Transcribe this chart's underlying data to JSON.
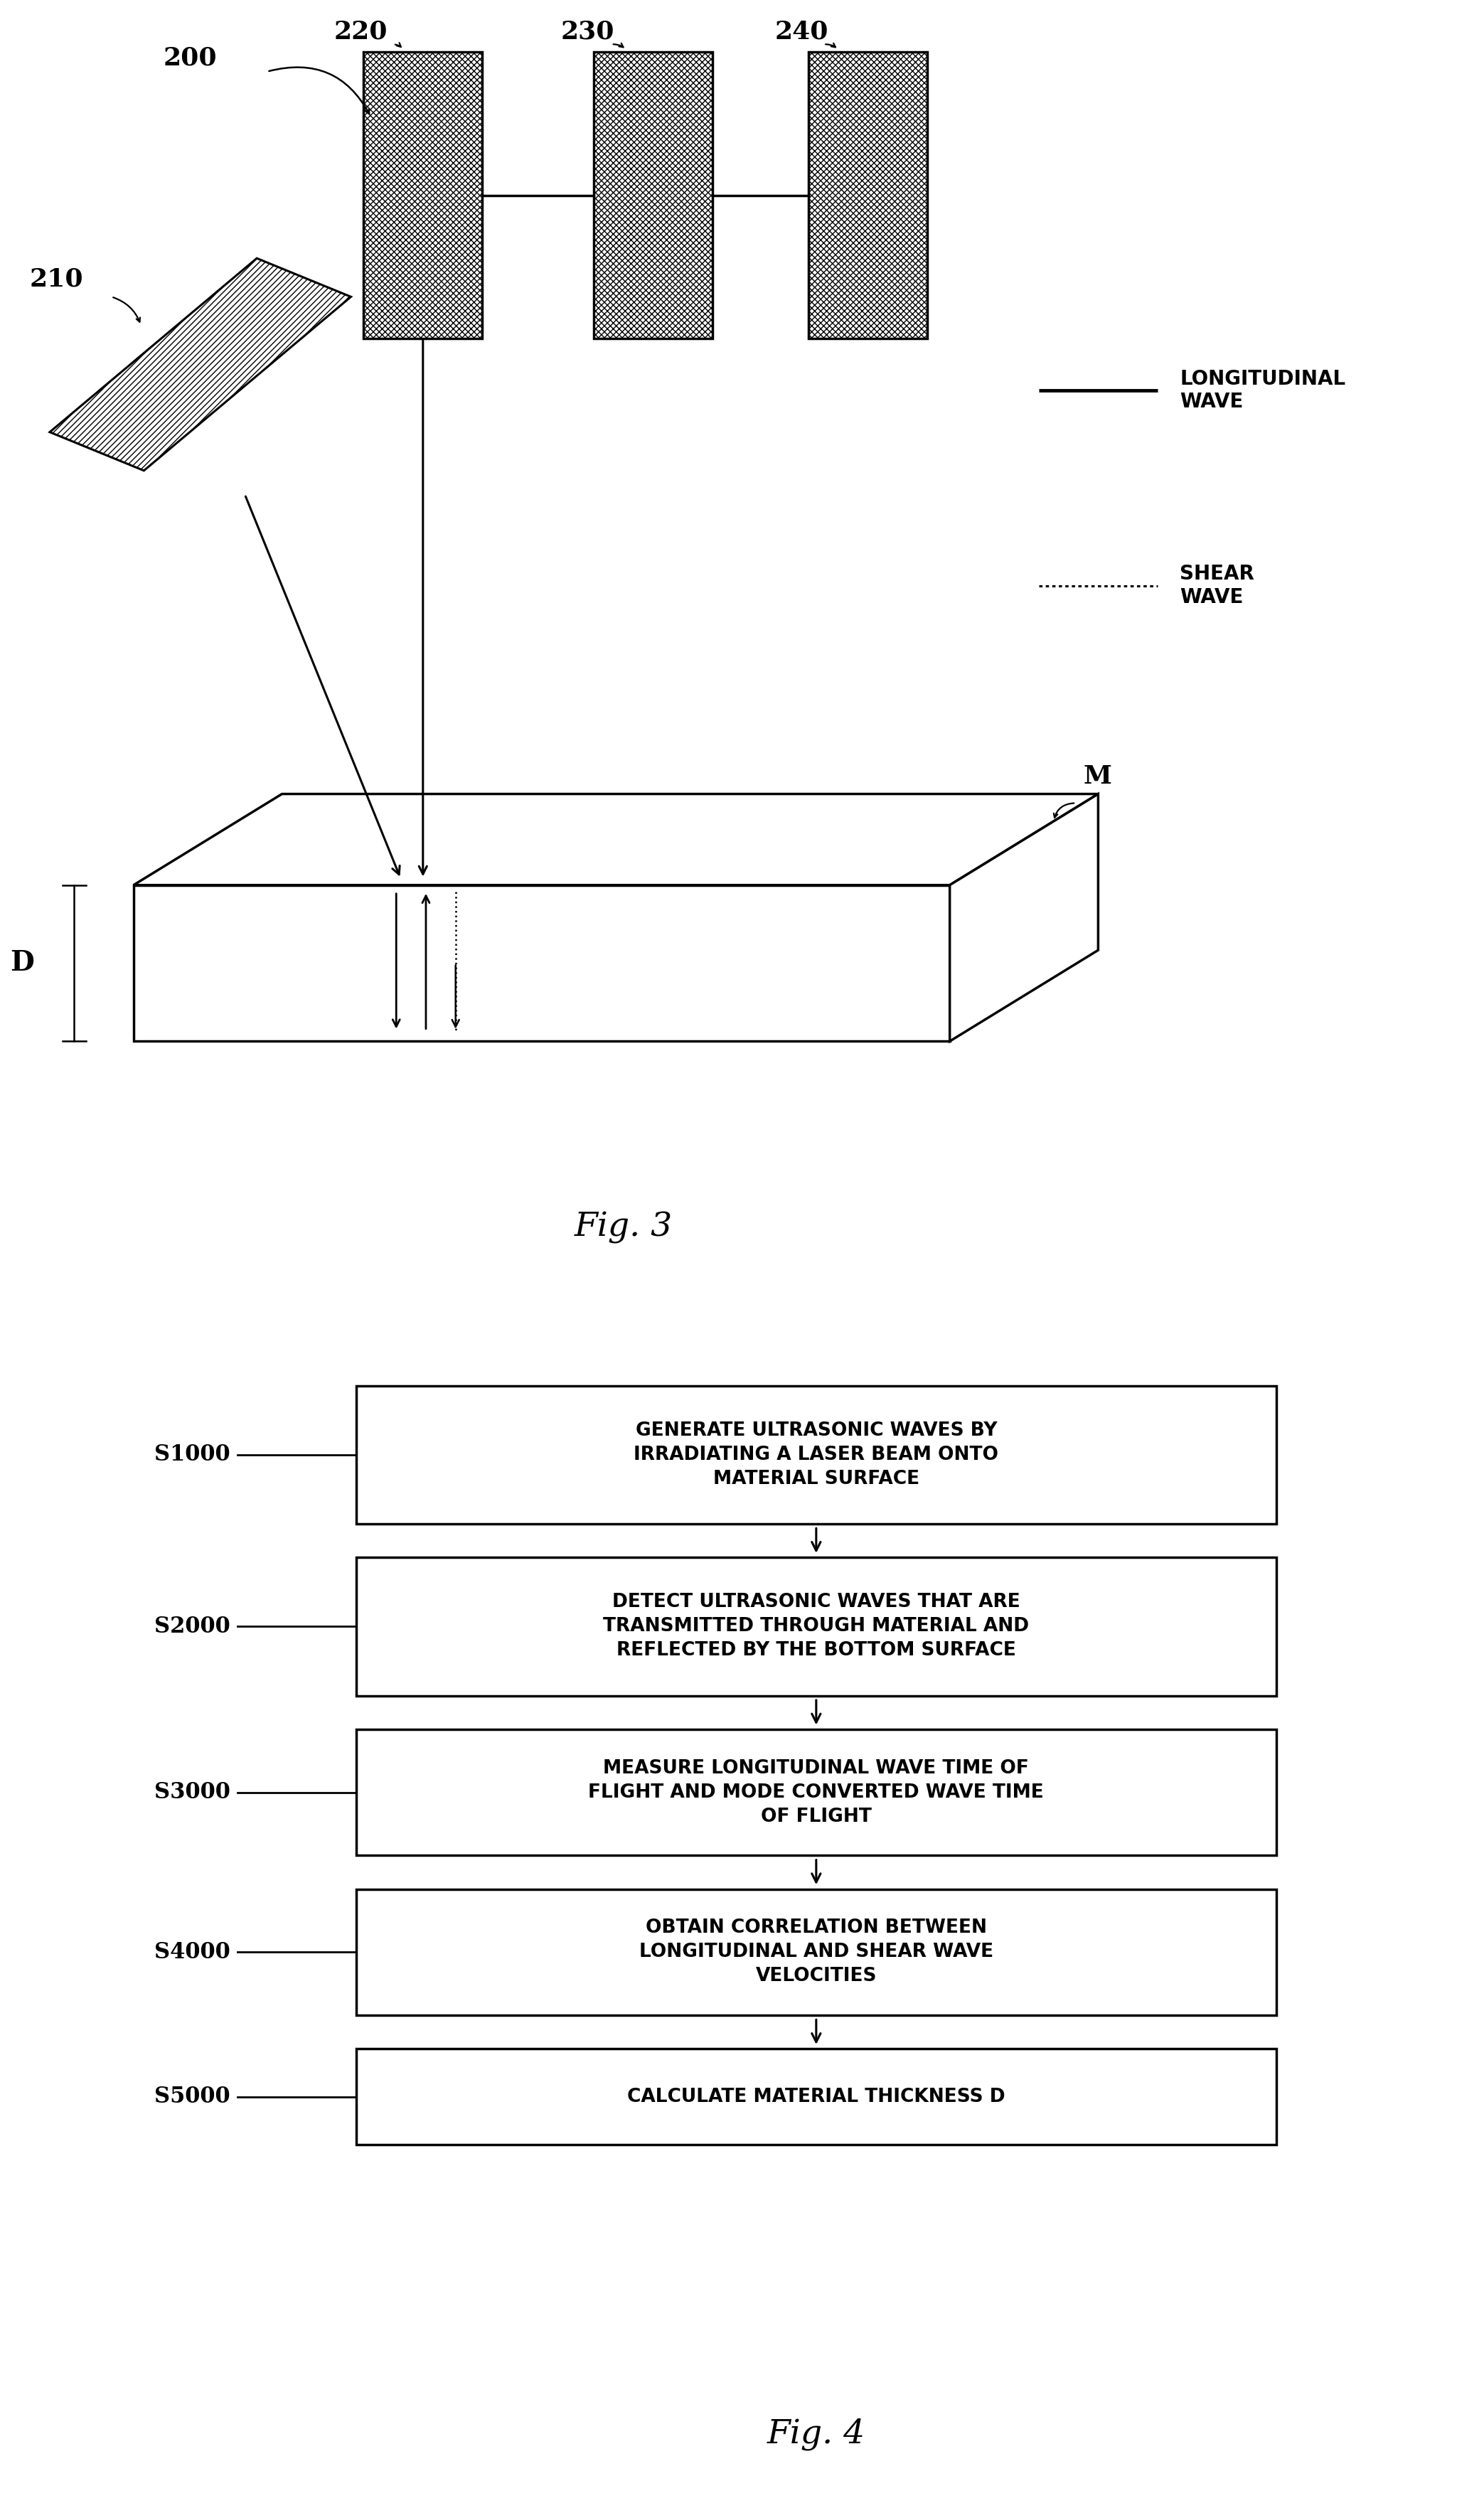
{
  "fig3": {
    "label_200": "200",
    "label_210": "210",
    "label_220": "220",
    "label_230": "230",
    "label_240": "240",
    "label_M": "M",
    "label_D": "D",
    "legend_long": "LONGITUDINAL\nWAVE",
    "legend_shear": "SHEAR\nWAVE",
    "fig_label": "Fig. 3"
  },
  "fig4": {
    "steps": [
      {
        "id": "S1000",
        "text": "GENERATE ULTRASONIC WAVES BY\nIRRADIATING A LASER BEAM ONTO\nMATERIAL SURFACE"
      },
      {
        "id": "S2000",
        "text": "DETECT ULTRASONIC WAVES THAT ARE\nTRANSMITTED THROUGH MATERIAL AND\nREFLECTED BY THE BOTTOM SURFACE"
      },
      {
        "id": "S3000",
        "text": "MEASURE LONGITUDINAL WAVE TIME OF\nFLIGHT AND MODE CONVERTED WAVE TIME\nOF FLIGHT"
      },
      {
        "id": "S4000",
        "text": "OBTAIN CORRELATION BETWEEN\nLONGITUDINAL AND SHEAR WAVE\nVELOCITIES"
      },
      {
        "id": "S5000",
        "text": "CALCULATE MATERIAL THICKNESS D"
      }
    ],
    "fig_label": "Fig. 4"
  },
  "bg_color": "#ffffff",
  "line_color": "#000000"
}
